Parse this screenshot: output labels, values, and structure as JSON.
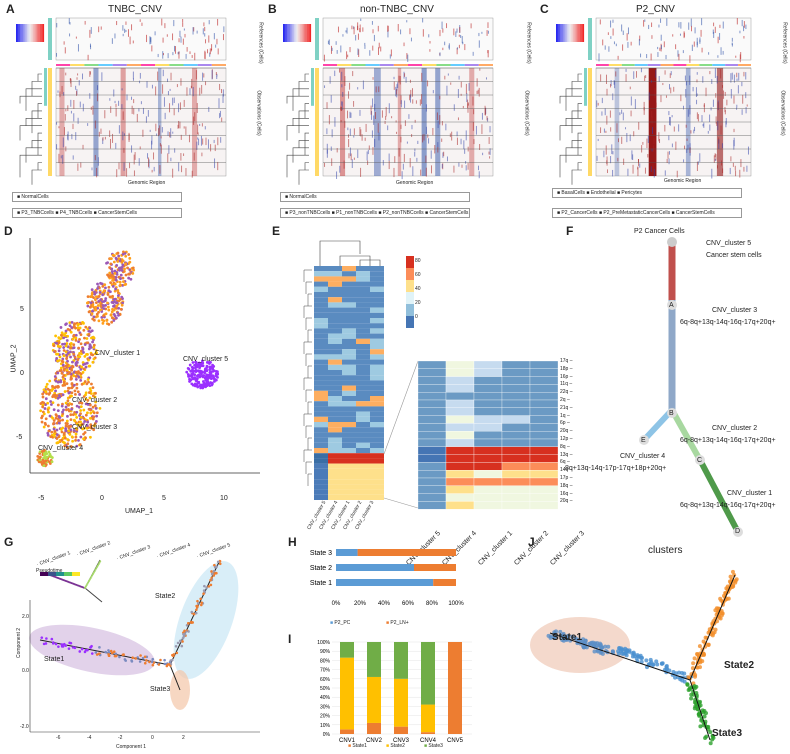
{
  "panels": {
    "A": {
      "letter": "A",
      "title": "TNBC_CNV",
      "legend1": [
        "NormalCells"
      ],
      "legend2": [
        "P3_TNBCcells",
        "P4_TNBCcells",
        "CancerStemCells"
      ],
      "side_ref": "References (Cells)",
      "side_obs": "Observations (Cells)",
      "xlabel": "Genomic Region"
    },
    "B": {
      "letter": "B",
      "title": "non-TNBC_CNV",
      "legend1": [
        "NormalCells"
      ],
      "legend2": [
        "P3_nonTNBCcells",
        "P1_nonTNBCcells",
        "P2_nonTNBCcells",
        "CancerStemCells"
      ],
      "side_ref": "References (Cells)",
      "side_obs": "Observations (Cells)",
      "xlabel": "Genomic Region"
    },
    "C": {
      "letter": "C",
      "title": "P2_CNV",
      "legend1": [
        "BasalCells",
        "Endothelial",
        "Pericytes"
      ],
      "legend2": [
        "P2_CancerCells",
        "P2_PreMetastaticCancerCells",
        "CancerStemCells"
      ],
      "side_ref": "References (Cells)",
      "side_obs": "Observations (Cells)",
      "xlabel": "Genomic Region"
    },
    "D": {
      "letter": "D",
      "xlabel": "UMAP_1",
      "ylabel": "UMAP_2",
      "labels": [
        "CNV_cluster 1",
        "CNV_cluster 2",
        "CNV_cluster 3",
        "CNV_cluster 4",
        "CNV_cluster 5"
      ],
      "xticks": [
        "-5",
        "0",
        "5",
        "10"
      ],
      "yticks": [
        "5",
        "0",
        "-5"
      ]
    },
    "E": {
      "letter": "E",
      "cols": [
        "CNV_cluster 5",
        "CNV_cluster 4",
        "CNV_cluster 1",
        "CNV_cluster 2",
        "CNV_cluster 3"
      ],
      "scale": [
        "80",
        "60",
        "40",
        "20",
        "0"
      ],
      "rows": [
        "17q",
        "18p",
        "16p",
        "11q",
        "22q",
        "2q",
        "21q",
        "1q",
        "6p",
        "20q",
        "12p",
        "8q",
        "13q",
        "6q",
        "14q",
        "17p",
        "18q",
        "16q",
        "20q"
      ]
    },
    "F": {
      "letter": "F",
      "title": "P2 Cancer Cells",
      "nodes": [
        "A",
        "B",
        "C",
        "D",
        "E"
      ],
      "c5": "CNV_cluster 5",
      "c5sub": "Cancer stem cells",
      "c3": "CNV_cluster 3",
      "c3sub": "6q-8q+13q-14q-16q-17q+20q+",
      "c2": "CNV_cluster 2",
      "c2sub": "6q-8q+13q-14q-16q-17q+20q+",
      "c4": "CNV_cluster 4",
      "c4sub": "8q+13q-14q-17p-17q+18p+20q+",
      "c1": "CNV_cluster 1",
      "c1sub": "6q-8q+13q-14q-16q-17q+20q+"
    },
    "G": {
      "letter": "G",
      "legend": [
        "CNV_cluster 1",
        "CNV_cluster 2",
        "CNV_cluster 3",
        "CNV_cluster 4",
        "CNV_cluster 5"
      ],
      "pseudotime": "Pseudotime",
      "state1": "State1",
      "state2": "State2",
      "state3": "State3",
      "xlabel": "Component 1",
      "ylabel": "Component 2",
      "xticks": [
        "-6",
        "-4",
        "-2",
        "0",
        "2"
      ],
      "yticks": [
        "2.0",
        "0.0",
        "-2.0"
      ]
    },
    "H": {
      "letter": "H",
      "legend": [
        "P2_PC",
        "P2_LN+"
      ],
      "xticks": [
        "0%",
        "20%",
        "40%",
        "60%",
        "80%",
        "100%"
      ]
    },
    "I": {
      "letter": "I",
      "legend": [
        "State1",
        "State2",
        "State3"
      ],
      "yticks": [
        "100%",
        "90%",
        "80%",
        "70%",
        "60%",
        "50%",
        "40%",
        "30%",
        "20%",
        "10%",
        "0%"
      ]
    },
    "J": {
      "letter": "J",
      "title": "clusters",
      "state1": "State1",
      "state2": "State2",
      "state3": "State3"
    }
  },
  "colors": {
    "blue": "#5b9bd5",
    "orange": "#ed7d31",
    "yellow": "#ffc000",
    "green": "#70ad47",
    "purple": "#9b30ff",
    "red": "#c0504d"
  },
  "chart_data": [
    {
      "type": "bar",
      "orientation": "horizontal",
      "stacked": true,
      "title": "H",
      "categories": [
        "State 3",
        "State 2",
        "State 1"
      ],
      "series": [
        {
          "name": "P2_PC",
          "values": [
            18,
            65,
            81
          ]
        },
        {
          "name": "P2_LN+",
          "values": [
            82,
            35,
            19
          ]
        }
      ],
      "xlim": [
        0,
        100
      ]
    },
    {
      "type": "bar",
      "stacked": true,
      "title": "I",
      "categories": [
        "CNV1",
        "CNV2",
        "CNV3",
        "CNV4",
        "CNV5"
      ],
      "series": [
        {
          "name": "State1",
          "values": [
            5,
            12,
            8,
            2,
            100
          ]
        },
        {
          "name": "State2",
          "values": [
            78,
            50,
            52,
            30,
            0
          ]
        },
        {
          "name": "State3",
          "values": [
            17,
            38,
            40,
            68,
            0
          ]
        }
      ],
      "ylim": [
        0,
        100
      ]
    }
  ]
}
